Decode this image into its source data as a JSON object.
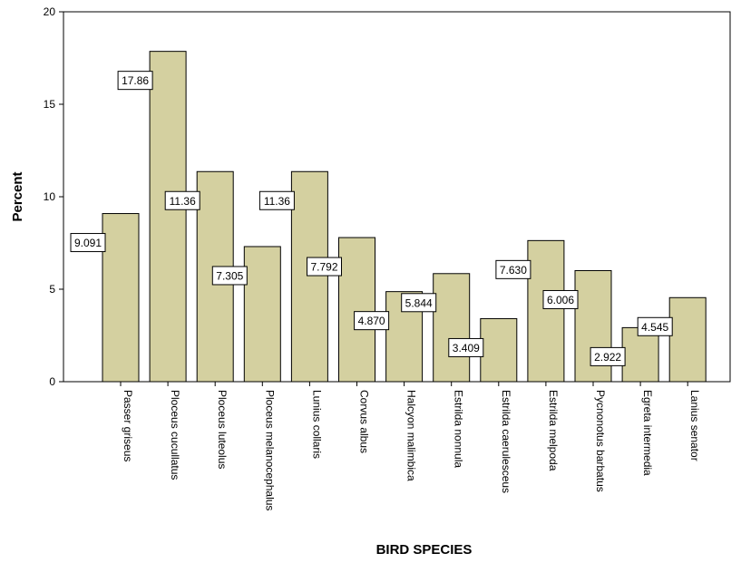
{
  "chart_data": {
    "type": "bar",
    "title": "",
    "xlabel": "BIRD SPECIES",
    "ylabel": "Percent",
    "ylim": [
      0,
      20
    ],
    "yticks": [
      0,
      5,
      10,
      15,
      20
    ],
    "grid": false,
    "categories": [
      "Passer griseus",
      "Ploceus cucullatus",
      "Ploceus luteolus",
      "Ploceus melanocephalus",
      "Lunius collaris",
      "Corvus albus",
      "Halcyon malimbica",
      "Estrilda nonnula",
      "Estrilda caerulesceus",
      "Estrilda melpoda",
      "Pycnonotus barbatus",
      "Egreta intermedia",
      "Lanius senator"
    ],
    "values": [
      9.091,
      17.86,
      11.36,
      7.305,
      11.36,
      7.792,
      4.87,
      5.844,
      3.409,
      7.63,
      6.006,
      2.922,
      4.545
    ],
    "data_labels": [
      "9.091",
      "17.86",
      "11.36",
      "7.305",
      "11.36",
      "7.792",
      "4.870",
      "5.844",
      "3.409",
      "7.630",
      "6.006",
      "2.922",
      "4.545"
    ],
    "colors": {
      "bar_fill": "#d4d0a0",
      "bar_stroke": "#000000",
      "plot_border": "#000000",
      "background": "#ffffff"
    }
  }
}
